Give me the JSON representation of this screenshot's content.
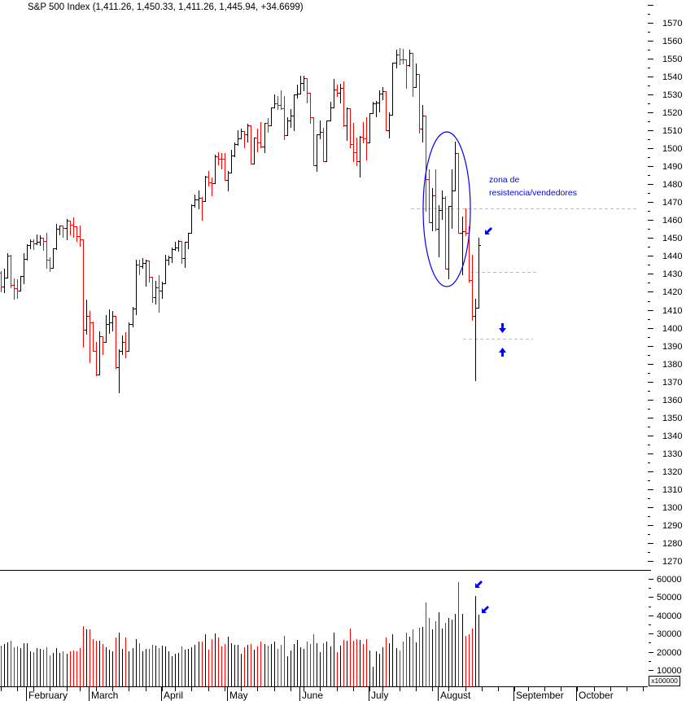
{
  "chart_data": {
    "type": "bar",
    "subtype": "ohlc",
    "title": "S&P 500 Index (1,411.26, 1,450.33, 1,411.26, 1,445.94, +34.6699)",
    "series_name": "S&P 500 Index",
    "last_values": {
      "open": 1411.26,
      "high": 1450.33,
      "low": 1411.26,
      "close": 1445.94,
      "change": 34.6699
    },
    "xlabel": "",
    "ylabel": "",
    "ylim": [
      1265,
      1580
    ],
    "grid": false,
    "legend": null,
    "price_axis": {
      "side": "right",
      "labels": [
        1570,
        1560,
        1550,
        1540,
        1530,
        1520,
        1510,
        1500,
        1490,
        1480,
        1470,
        1460,
        1450,
        1440,
        1430,
        1420,
        1410,
        1400,
        1390,
        1380,
        1370,
        1360,
        1350,
        1340,
        1330,
        1320,
        1310,
        1300,
        1290,
        1280,
        1270
      ]
    },
    "volume_axis": {
      "side": "right",
      "labels": [
        60000,
        50000,
        40000,
        30000,
        20000,
        10000
      ],
      "multiplier_label": "x100000",
      "ylim": [
        0,
        65000
      ]
    },
    "x_axis": {
      "months": [
        {
          "label": "February",
          "index": 8
        },
        {
          "label": "March",
          "index": 27
        },
        {
          "label": "April",
          "index": 49
        },
        {
          "label": "May",
          "index": 69
        },
        {
          "label": "June",
          "index": 91
        },
        {
          "label": "July",
          "index": 112
        },
        {
          "label": "August",
          "index": 133
        },
        {
          "label": "September",
          "index": 156
        },
        {
          "label": "October",
          "index": 175
        }
      ],
      "week_tick_indices": [
        0,
        5,
        10,
        15,
        20,
        24,
        29,
        34,
        39,
        44,
        49,
        53,
        58,
        63,
        68,
        73,
        78,
        83,
        88,
        92,
        97,
        102,
        107,
        112,
        116,
        121,
        126,
        131,
        136,
        141,
        146,
        151,
        156,
        160,
        165,
        170,
        175,
        180,
        185,
        190,
        195
      ]
    },
    "colors": {
      "up": "#000000",
      "down": "#FF0000"
    },
    "bar_fields": [
      "open",
      "high",
      "low",
      "close",
      "volume"
    ],
    "bars": [
      [
        1430.5,
        1431.4,
        1420.4,
        1423.0,
        23400
      ],
      [
        1423.0,
        1432.9,
        1419.7,
        1428.0,
        24100
      ],
      [
        1428.0,
        1441.6,
        1428.0,
        1440.1,
        25100
      ],
      [
        1440.1,
        1440.7,
        1422.3,
        1423.9,
        26000
      ],
      [
        1423.9,
        1427.3,
        1416.0,
        1422.2,
        22500
      ],
      [
        1422.2,
        1426.9,
        1416.8,
        1420.6,
        22900
      ],
      [
        1420.6,
        1428.8,
        1420.6,
        1428.8,
        22000
      ],
      [
        1428.8,
        1441.6,
        1424.8,
        1438.2,
        24700
      ],
      [
        1438.2,
        1446.6,
        1437.9,
        1445.9,
        24700
      ],
      [
        1445.9,
        1449.3,
        1444.5,
        1448.4,
        20200
      ],
      [
        1448.4,
        1449.4,
        1443.8,
        1447.0,
        19800
      ],
      [
        1447.0,
        1452.0,
        1446.4,
        1448.0,
        22000
      ],
      [
        1448.0,
        1451.6,
        1446.0,
        1450.0,
        21600
      ],
      [
        1450.0,
        1450.0,
        1443.4,
        1448.3,
        21100
      ],
      [
        1448.3,
        1452.9,
        1433.4,
        1438.1,
        22500
      ],
      [
        1438.1,
        1439.1,
        1431.4,
        1433.4,
        18000
      ],
      [
        1433.4,
        1444.4,
        1433.4,
        1444.3,
        19300
      ],
      [
        1444.3,
        1457.7,
        1443.9,
        1455.3,
        22000
      ],
      [
        1455.3,
        1457.0,
        1452.0,
        1456.8,
        19300
      ],
      [
        1456.8,
        1456.8,
        1450.5,
        1455.5,
        20200
      ],
      [
        1455.5,
        1460.5,
        1449.2,
        1459.7,
        18900
      ],
      [
        1459.7,
        1459.7,
        1452.0,
        1457.6,
        20200
      ],
      [
        1457.6,
        1461.6,
        1450.5,
        1456.4,
        20700
      ],
      [
        1456.4,
        1456.4,
        1448.4,
        1451.2,
        20200
      ],
      [
        1451.2,
        1456.9,
        1445.5,
        1449.4,
        22000
      ],
      [
        1449.4,
        1449.4,
        1389.4,
        1399.0,
        34100
      ],
      [
        1399.0,
        1415.9,
        1396.6,
        1406.8,
        32300
      ],
      [
        1406.8,
        1409.5,
        1380.9,
        1403.2,
        32300
      ],
      [
        1403.2,
        1403.4,
        1386.9,
        1387.2,
        26900
      ],
      [
        1387.2,
        1391.9,
        1373.4,
        1374.1,
        26000
      ],
      [
        1374.1,
        1397.9,
        1374.1,
        1395.4,
        26000
      ],
      [
        1395.4,
        1395.4,
        1385.2,
        1392.0,
        24200
      ],
      [
        1392.0,
        1407.0,
        1392.0,
        1401.9,
        22500
      ],
      [
        1401.9,
        1410.2,
        1397.3,
        1402.8,
        21100
      ],
      [
        1402.8,
        1409.3,
        1398.4,
        1406.6,
        20200
      ],
      [
        1406.6,
        1406.6,
        1377.7,
        1378.0,
        27800
      ],
      [
        1378.0,
        1388.1,
        1364.0,
        1387.2,
        30500
      ],
      [
        1387.2,
        1395.7,
        1385.2,
        1392.3,
        21600
      ],
      [
        1392.3,
        1397.5,
        1383.6,
        1387.0,
        27800
      ],
      [
        1387.0,
        1403.2,
        1387.0,
        1402.1,
        20200
      ],
      [
        1402.1,
        1411.5,
        1400.7,
        1410.9,
        22000
      ],
      [
        1410.9,
        1437.7,
        1407.3,
        1435.0,
        26900
      ],
      [
        1435.0,
        1437.7,
        1429.9,
        1434.5,
        24700
      ],
      [
        1434.5,
        1438.9,
        1433.2,
        1436.1,
        20200
      ],
      [
        1436.1,
        1437.7,
        1423.3,
        1437.5,
        21600
      ],
      [
        1437.5,
        1437.5,
        1425.5,
        1428.6,
        21600
      ],
      [
        1428.6,
        1428.6,
        1414.1,
        1417.2,
        23800
      ],
      [
        1417.2,
        1426.2,
        1413.3,
        1422.5,
        23400
      ],
      [
        1422.5,
        1429.2,
        1408.9,
        1420.9,
        22000
      ],
      [
        1420.9,
        1425.5,
        1416.4,
        1424.6,
        23400
      ],
      [
        1424.6,
        1440.6,
        1424.6,
        1437.8,
        22900
      ],
      [
        1437.8,
        1440.2,
        1435.1,
        1439.4,
        20200
      ],
      [
        1439.4,
        1444.9,
        1436.6,
        1443.8,
        17600
      ],
      [
        1443.8,
        1448.1,
        1443.3,
        1444.6,
        18900
      ],
      [
        1444.6,
        1448.7,
        1443.0,
        1448.4,
        19300
      ],
      [
        1448.4,
        1448.4,
        1436.2,
        1438.9,
        22900
      ],
      [
        1438.9,
        1448.0,
        1433.9,
        1447.8,
        21100
      ],
      [
        1447.8,
        1453.1,
        1444.1,
        1452.9,
        21600
      ],
      [
        1452.9,
        1468.6,
        1452.9,
        1468.5,
        22500
      ],
      [
        1468.5,
        1474.4,
        1467.2,
        1471.5,
        23800
      ],
      [
        1471.5,
        1476.6,
        1466.4,
        1472.5,
        25600
      ],
      [
        1472.5,
        1472.8,
        1460.3,
        1470.7,
        25600
      ],
      [
        1470.7,
        1484.7,
        1470.7,
        1484.4,
        29600
      ],
      [
        1484.4,
        1487.3,
        1479.3,
        1480.9,
        21100
      ],
      [
        1480.9,
        1483.8,
        1473.7,
        1480.4,
        26900
      ],
      [
        1480.4,
        1496.6,
        1480.4,
        1495.4,
        30100
      ],
      [
        1495.4,
        1498.0,
        1491.2,
        1494.3,
        27800
      ],
      [
        1494.3,
        1497.3,
        1488.7,
        1494.1,
        22900
      ],
      [
        1494.1,
        1497.2,
        1482.3,
        1482.4,
        24200
      ],
      [
        1482.4,
        1487.3,
        1476.7,
        1486.3,
        28300
      ],
      [
        1486.3,
        1499.1,
        1486.3,
        1495.9,
        24700
      ],
      [
        1495.9,
        1503.3,
        1495.6,
        1502.4,
        23800
      ],
      [
        1502.4,
        1510.3,
        1501.8,
        1505.6,
        23800
      ],
      [
        1505.6,
        1511.0,
        1505.5,
        1509.5,
        18900
      ],
      [
        1509.5,
        1509.5,
        1500.7,
        1507.7,
        22500
      ],
      [
        1507.7,
        1513.8,
        1503.8,
        1512.6,
        23800
      ],
      [
        1512.6,
        1512.6,
        1491.4,
        1491.5,
        24300
      ],
      [
        1491.5,
        1506.2,
        1491.5,
        1505.9,
        21100
      ],
      [
        1505.9,
        1510.9,
        1498.3,
        1503.2,
        22900
      ],
      [
        1503.2,
        1514.8,
        1500.4,
        1501.2,
        25600
      ],
      [
        1501.2,
        1514.2,
        1498.0,
        1514.1,
        24300
      ],
      [
        1514.1,
        1517.1,
        1509.3,
        1512.8,
        23400
      ],
      [
        1512.8,
        1522.8,
        1512.8,
        1522.8,
        24300
      ],
      [
        1522.8,
        1529.9,
        1522.7,
        1525.1,
        25600
      ],
      [
        1525.1,
        1529.2,
        1522.1,
        1524.1,
        21600
      ],
      [
        1524.1,
        1532.4,
        1521.8,
        1522.3,
        23800
      ],
      [
        1522.3,
        1529.3,
        1505.2,
        1507.5,
        28700
      ],
      [
        1507.5,
        1517.4,
        1507.5,
        1515.7,
        17600
      ],
      [
        1515.7,
        1521.8,
        1512.0,
        1518.1,
        20700
      ],
      [
        1518.1,
        1530.2,
        1510.1,
        1530.2,
        24300
      ],
      [
        1530.2,
        1535.6,
        1528.3,
        1530.6,
        26500
      ],
      [
        1530.6,
        1540.6,
        1530.6,
        1536.3,
        22500
      ],
      [
        1536.3,
        1540.5,
        1532.4,
        1539.2,
        21600
      ],
      [
        1539.2,
        1539.2,
        1525.6,
        1531.0,
        25600
      ],
      [
        1531.0,
        1531.0,
        1514.2,
        1517.4,
        24300
      ],
      [
        1517.4,
        1517.4,
        1490.4,
        1490.7,
        29600
      ],
      [
        1490.7,
        1507.8,
        1487.4,
        1507.7,
        24700
      ],
      [
        1507.7,
        1515.5,
        1505.5,
        1509.1,
        19800
      ],
      [
        1509.1,
        1511.3,
        1492.9,
        1493.0,
        24700
      ],
      [
        1493.0,
        1515.7,
        1493.0,
        1515.7,
        25600
      ],
      [
        1515.7,
        1526.1,
        1515.6,
        1523.0,
        22900
      ],
      [
        1523.0,
        1538.7,
        1523.0,
        1532.9,
        30500
      ],
      [
        1532.9,
        1535.4,
        1529.3,
        1531.1,
        19800
      ],
      [
        1531.1,
        1535.9,
        1525.7,
        1533.7,
        23400
      ],
      [
        1533.7,
        1537.3,
        1512.4,
        1512.8,
        26500
      ],
      [
        1512.8,
        1522.9,
        1504.8,
        1522.2,
        26000
      ],
      [
        1522.2,
        1522.2,
        1500.7,
        1502.6,
        32700
      ],
      [
        1502.6,
        1514.3,
        1492.7,
        1497.7,
        26000
      ],
      [
        1497.7,
        1506.1,
        1490.5,
        1492.9,
        26900
      ],
      [
        1492.9,
        1506.8,
        1484.2,
        1506.3,
        26500
      ],
      [
        1506.3,
        1514.8,
        1503.4,
        1505.7,
        24300
      ],
      [
        1505.7,
        1517.5,
        1493.6,
        1503.4,
        26900
      ],
      [
        1503.4,
        1519.5,
        1503.4,
        1519.4,
        20700
      ],
      [
        1519.4,
        1526.0,
        1519.4,
        1524.9,
        11800
      ],
      [
        1524.9,
        1526.6,
        1517.7,
        1525.4,
        20200
      ],
      [
        1525.4,
        1532.4,
        1520.5,
        1530.4,
        18900
      ],
      [
        1530.4,
        1534.3,
        1527.5,
        1531.9,
        22500
      ],
      [
        1531.9,
        1531.9,
        1510.0,
        1510.1,
        27800
      ],
      [
        1510.1,
        1519.9,
        1506.1,
        1518.8,
        24700
      ],
      [
        1518.8,
        1547.9,
        1518.7,
        1547.7,
        29600
      ],
      [
        1547.7,
        1555.1,
        1544.9,
        1552.5,
        22000
      ],
      [
        1552.5,
        1555.9,
        1546.7,
        1549.5,
        20700
      ],
      [
        1549.5,
        1555.3,
        1547.2,
        1549.4,
        25600
      ],
      [
        1549.4,
        1549.4,
        1533.7,
        1546.2,
        30500
      ],
      [
        1546.2,
        1555.2,
        1546.1,
        1553.1,
        28300
      ],
      [
        1553.1,
        1553.1,
        1529.2,
        1534.1,
        32300
      ],
      [
        1534.1,
        1547.2,
        1534.1,
        1541.6,
        25100
      ],
      [
        1541.6,
        1541.6,
        1508.6,
        1511.0,
        33200
      ],
      [
        1511.0,
        1524.3,
        1503.7,
        1518.1,
        33600
      ],
      [
        1518.1,
        1518.1,
        1465.3,
        1482.7,
        47000
      ],
      [
        1482.7,
        1488.5,
        1458.9,
        1459.0,
        38500
      ],
      [
        1459.0,
        1477.9,
        1454.3,
        1473.9,
        32300
      ],
      [
        1473.9,
        1488.3,
        1454.3,
        1455.3,
        36700
      ],
      [
        1455.3,
        1468.4,
        1439.6,
        1465.8,
        41700
      ],
      [
        1465.8,
        1476.4,
        1460.6,
        1472.2,
        32700
      ],
      [
        1472.2,
        1473.2,
        1432.8,
        1433.1,
        35900
      ],
      [
        1433.1,
        1467.7,
        1427.4,
        1467.7,
        38500
      ],
      [
        1467.7,
        1488.3,
        1455.8,
        1476.7,
        37600
      ],
      [
        1476.7,
        1503.9,
        1476.7,
        1497.5,
        40800
      ],
      [
        1497.5,
        1497.5,
        1453.1,
        1453.1,
        58200
      ],
      [
        1453.1,
        1462.0,
        1429.7,
        1453.6,
        40800
      ],
      [
        1453.6,
        1466.3,
        1451.5,
        1452.9,
        28700
      ],
      [
        1452.9,
        1456.7,
        1425.5,
        1426.5,
        29600
      ],
      [
        1426.5,
        1440.8,
        1404.4,
        1406.7,
        32700
      ],
      [
        1406.7,
        1415.97,
        1370.6,
        1411.3,
        50600
      ],
      [
        1411.26,
        1450.33,
        1411.26,
        1445.94,
        40300
      ]
    ]
  },
  "annotations": {
    "color": "#0000FF",
    "guide_color": "#BDBDBD",
    "label_lines": [
      "zona de",
      "resistencia/vendedores"
    ],
    "dashed_levels": [
      1466.3,
      1431.1,
      1393.9
    ],
    "arrows": [
      "arrow-down-left",
      "arrow-down",
      "arrow-up",
      "arrow-down-left",
      "arrow-down-left"
    ]
  }
}
